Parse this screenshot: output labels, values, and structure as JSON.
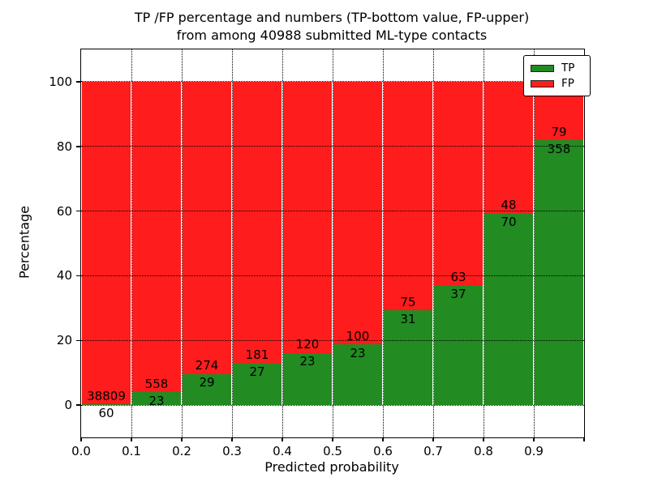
{
  "title": {
    "line1": "TP /FP percentage and numbers (TP-bottom value, FP-upper)",
    "line2": "from among 40988 submitted ML-type contacts"
  },
  "chart_data": {
    "type": "bar",
    "stacked": true,
    "normalized": "each bin stacked to 100%",
    "title": "TP /FP percentage and numbers (TP-bottom value, FP-upper) from among 40988 submitted ML-type contacts",
    "xlabel": "Predicted probability",
    "ylabel": "Percentage",
    "xlim": [
      0.0,
      1.0
    ],
    "ylim": [
      -10,
      110
    ],
    "xticks": [
      "0.0",
      "0.1",
      "0.2",
      "0.3",
      "0.4",
      "0.5",
      "0.6",
      "0.7",
      "0.8",
      "0.9"
    ],
    "yticks": [
      0,
      20,
      40,
      60,
      80,
      100
    ],
    "grid": "dotted both axes",
    "legend_position": "upper right",
    "total_contacts": 40988,
    "bars": [
      {
        "bin_start": 0.0,
        "tp": 60,
        "fp": 38809
      },
      {
        "bin_start": 0.1,
        "tp": 23,
        "fp": 558
      },
      {
        "bin_start": 0.2,
        "tp": 29,
        "fp": 274
      },
      {
        "bin_start": 0.3,
        "tp": 27,
        "fp": 181
      },
      {
        "bin_start": 0.4,
        "tp": 23,
        "fp": 120
      },
      {
        "bin_start": 0.5,
        "tp": 23,
        "fp": 100
      },
      {
        "bin_start": 0.6,
        "tp": 31,
        "fp": 75
      },
      {
        "bin_start": 0.7,
        "tp": 37,
        "fp": 63
      },
      {
        "bin_start": 0.8,
        "tp": 70,
        "fp": 48
      },
      {
        "bin_start": 0.9,
        "tp": 358,
        "fp": 79
      }
    ],
    "legend": [
      {
        "label": "TP",
        "color": "#228b22"
      },
      {
        "label": "FP",
        "color": "#ff1c1c"
      }
    ]
  },
  "colors": {
    "tp": "#228b22",
    "fp": "#ff1c1c",
    "grid": "#000000",
    "background": "#ffffff"
  }
}
